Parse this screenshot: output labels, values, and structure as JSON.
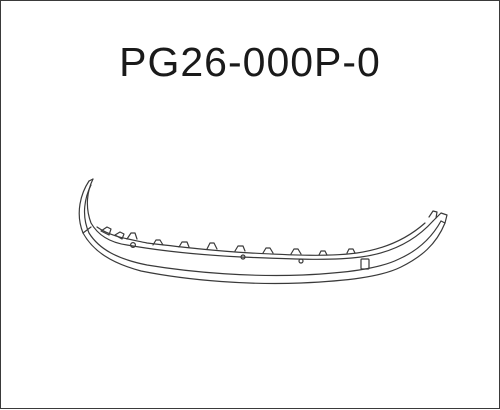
{
  "diagram": {
    "part_number": "PG26-000P-0",
    "subject": "front-lip-spoiler-line-drawing"
  }
}
